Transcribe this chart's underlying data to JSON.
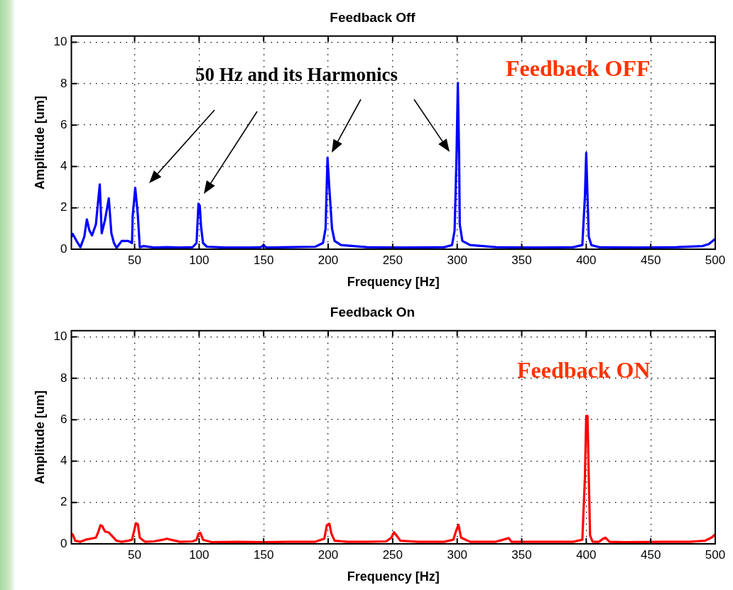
{
  "chart_data": [
    {
      "type": "line",
      "title": "Feedback Off",
      "xlabel": "Frequency [Hz]",
      "ylabel": "Amplitude [um]",
      "xlim": [
        1,
        500
      ],
      "xticks": [
        50,
        100,
        150,
        200,
        250,
        300,
        350,
        400,
        450,
        500
      ],
      "ylim": [
        0,
        10.3
      ],
      "yticks": [
        0,
        2,
        4,
        6,
        8,
        10
      ],
      "grid": true,
      "annotations": [
        "50 Hz and its Harmonics",
        "Feedback OFF"
      ],
      "series": [
        {
          "color": "#0000ff",
          "x": [
            1,
            2,
            5,
            8,
            11,
            13,
            15,
            17,
            20,
            23,
            24.5,
            27,
            30,
            32,
            34,
            36,
            40,
            45,
            48,
            48.5,
            50.5,
            52.5,
            54,
            57,
            65,
            75,
            85,
            95,
            98,
            99.5,
            100.5,
            101.5,
            103,
            106,
            120,
            140,
            148,
            150,
            152,
            170,
            190,
            196,
            198,
            199.5,
            201,
            203,
            205,
            210,
            230,
            260,
            290,
            296,
            298,
            299.5,
            300.5,
            301.5,
            302,
            304,
            310,
            330,
            360,
            390,
            397,
            399,
            400,
            401,
            402,
            404,
            410,
            440,
            470,
            490,
            495,
            500
          ],
          "values": [
            0.6,
            0.74,
            0.4,
            0.1,
            0.6,
            1.44,
            0.9,
            0.67,
            1.2,
            3.13,
            0.77,
            1.4,
            2.46,
            0.77,
            0.3,
            0.07,
            0.4,
            0.4,
            0.3,
            1.6,
            2.96,
            1.65,
            0.1,
            0.15,
            0.08,
            0.1,
            0.08,
            0.1,
            0.3,
            2.2,
            2.1,
            1.1,
            0.3,
            0.12,
            0.08,
            0.08,
            0.1,
            0.2,
            0.08,
            0.1,
            0.12,
            0.3,
            1.0,
            4.42,
            2.87,
            1.0,
            0.4,
            0.2,
            0.1,
            0.08,
            0.1,
            0.2,
            0.9,
            4.5,
            8.03,
            4.5,
            1.2,
            0.4,
            0.2,
            0.1,
            0.08,
            0.1,
            0.2,
            2.55,
            4.65,
            2.55,
            0.6,
            0.2,
            0.1,
            0.08,
            0.1,
            0.15,
            0.25,
            0.5
          ]
        }
      ]
    },
    {
      "type": "line",
      "title": "Feedback On",
      "xlabel": "Frequency [Hz]",
      "ylabel": "Amplitude [um]",
      "xlim": [
        1,
        500
      ],
      "xticks": [
        50,
        100,
        150,
        200,
        250,
        300,
        350,
        400,
        450,
        500
      ],
      "ylim": [
        0,
        10.3
      ],
      "yticks": [
        0,
        2,
        4,
        6,
        8,
        10
      ],
      "grid": true,
      "annotations": [
        "Feedback ON"
      ],
      "series": [
        {
          "color": "#ff0000",
          "x": [
            1,
            2,
            4,
            8,
            12,
            16,
            20,
            22,
            23.5,
            25,
            27,
            30,
            33,
            36,
            40,
            45,
            48,
            49.5,
            51,
            52.5,
            54,
            58,
            65,
            72,
            75,
            78,
            85,
            95,
            98,
            99.5,
            101,
            103,
            110,
            130,
            150,
            170,
            190,
            197,
            199,
            201,
            202.5,
            205,
            215,
            230,
            245,
            249,
            251,
            253,
            256,
            270,
            290,
            297,
            299,
            301,
            303,
            310,
            330,
            340,
            342,
            360,
            390,
            397,
            399,
            400,
            401,
            402,
            403,
            405,
            410,
            413,
            415,
            418,
            430,
            460,
            480,
            492,
            497,
            500
          ],
          "values": [
            0.5,
            0.45,
            0.15,
            0.1,
            0.2,
            0.25,
            0.3,
            0.6,
            0.9,
            0.85,
            0.6,
            0.55,
            0.35,
            0.15,
            0.1,
            0.15,
            0.2,
            0.6,
            1.0,
            0.95,
            0.3,
            0.1,
            0.12,
            0.2,
            0.25,
            0.2,
            0.1,
            0.12,
            0.2,
            0.5,
            0.53,
            0.2,
            0.08,
            0.1,
            0.08,
            0.1,
            0.1,
            0.25,
            0.9,
            0.97,
            0.5,
            0.15,
            0.1,
            0.1,
            0.12,
            0.3,
            0.56,
            0.4,
            0.15,
            0.1,
            0.1,
            0.2,
            0.6,
            0.92,
            0.3,
            0.1,
            0.1,
            0.28,
            0.1,
            0.1,
            0.1,
            0.2,
            3.2,
            6.18,
            6.18,
            3.2,
            0.4,
            0.1,
            0.1,
            0.25,
            0.3,
            0.1,
            0.08,
            0.1,
            0.1,
            0.15,
            0.3,
            0.46
          ]
        }
      ]
    }
  ]
}
